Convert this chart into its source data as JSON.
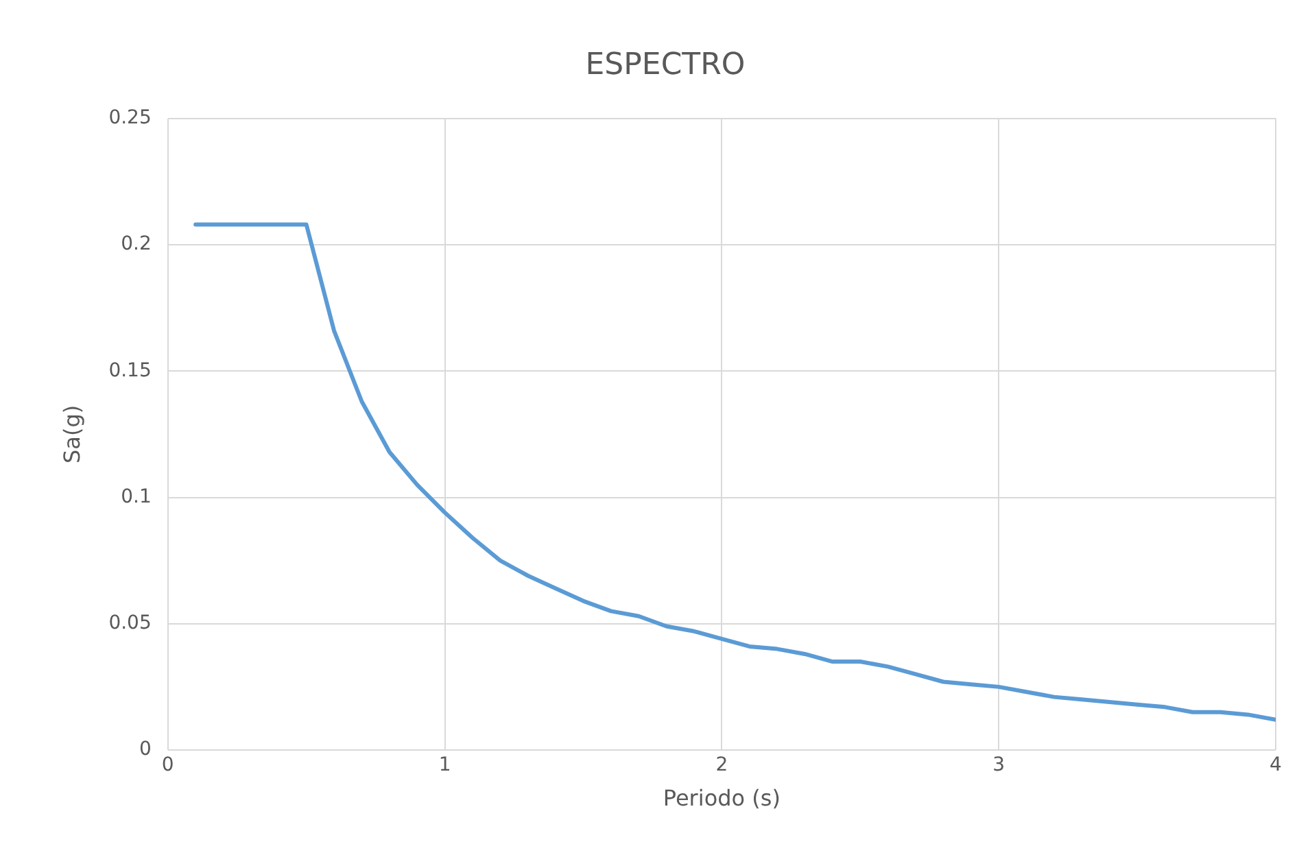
{
  "chart_data": {
    "type": "line",
    "title": "ESPECTRO",
    "xlabel": "Periodo (s)",
    "ylabel": "Sa(g)",
    "x": [
      0.1,
      0.5,
      0.6,
      0.7,
      0.8,
      0.9,
      1.0,
      1.1,
      1.2,
      1.3,
      1.4,
      1.5,
      1.6,
      1.7,
      1.8,
      1.9,
      2.0,
      2.1,
      2.2,
      2.3,
      2.4,
      2.5,
      2.6,
      2.7,
      2.8,
      2.9,
      3.0,
      3.1,
      3.2,
      3.3,
      3.4,
      3.5,
      3.6,
      3.7,
      3.8,
      3.9,
      4.0
    ],
    "series": [
      {
        "color": "#5b9bd5",
        "values": [
          0.208,
          0.208,
          0.166,
          0.138,
          0.118,
          0.105,
          0.094,
          0.084,
          0.075,
          0.069,
          0.064,
          0.059,
          0.055,
          0.053,
          0.049,
          0.047,
          0.044,
          0.041,
          0.04,
          0.038,
          0.035,
          0.035,
          0.033,
          0.03,
          0.027,
          0.026,
          0.025,
          0.023,
          0.021,
          0.02,
          0.019,
          0.018,
          0.017,
          0.015,
          0.015,
          0.014,
          0.012
        ]
      }
    ],
    "xlim": [
      0,
      4
    ],
    "xticks": [
      0,
      1,
      2,
      3,
      4
    ],
    "ylim": [
      0,
      0.25
    ],
    "yticks": [
      0,
      0.05,
      0.1,
      0.15,
      0.2,
      0.25
    ],
    "grid": true,
    "marker": "none",
    "line_style": "solid"
  }
}
